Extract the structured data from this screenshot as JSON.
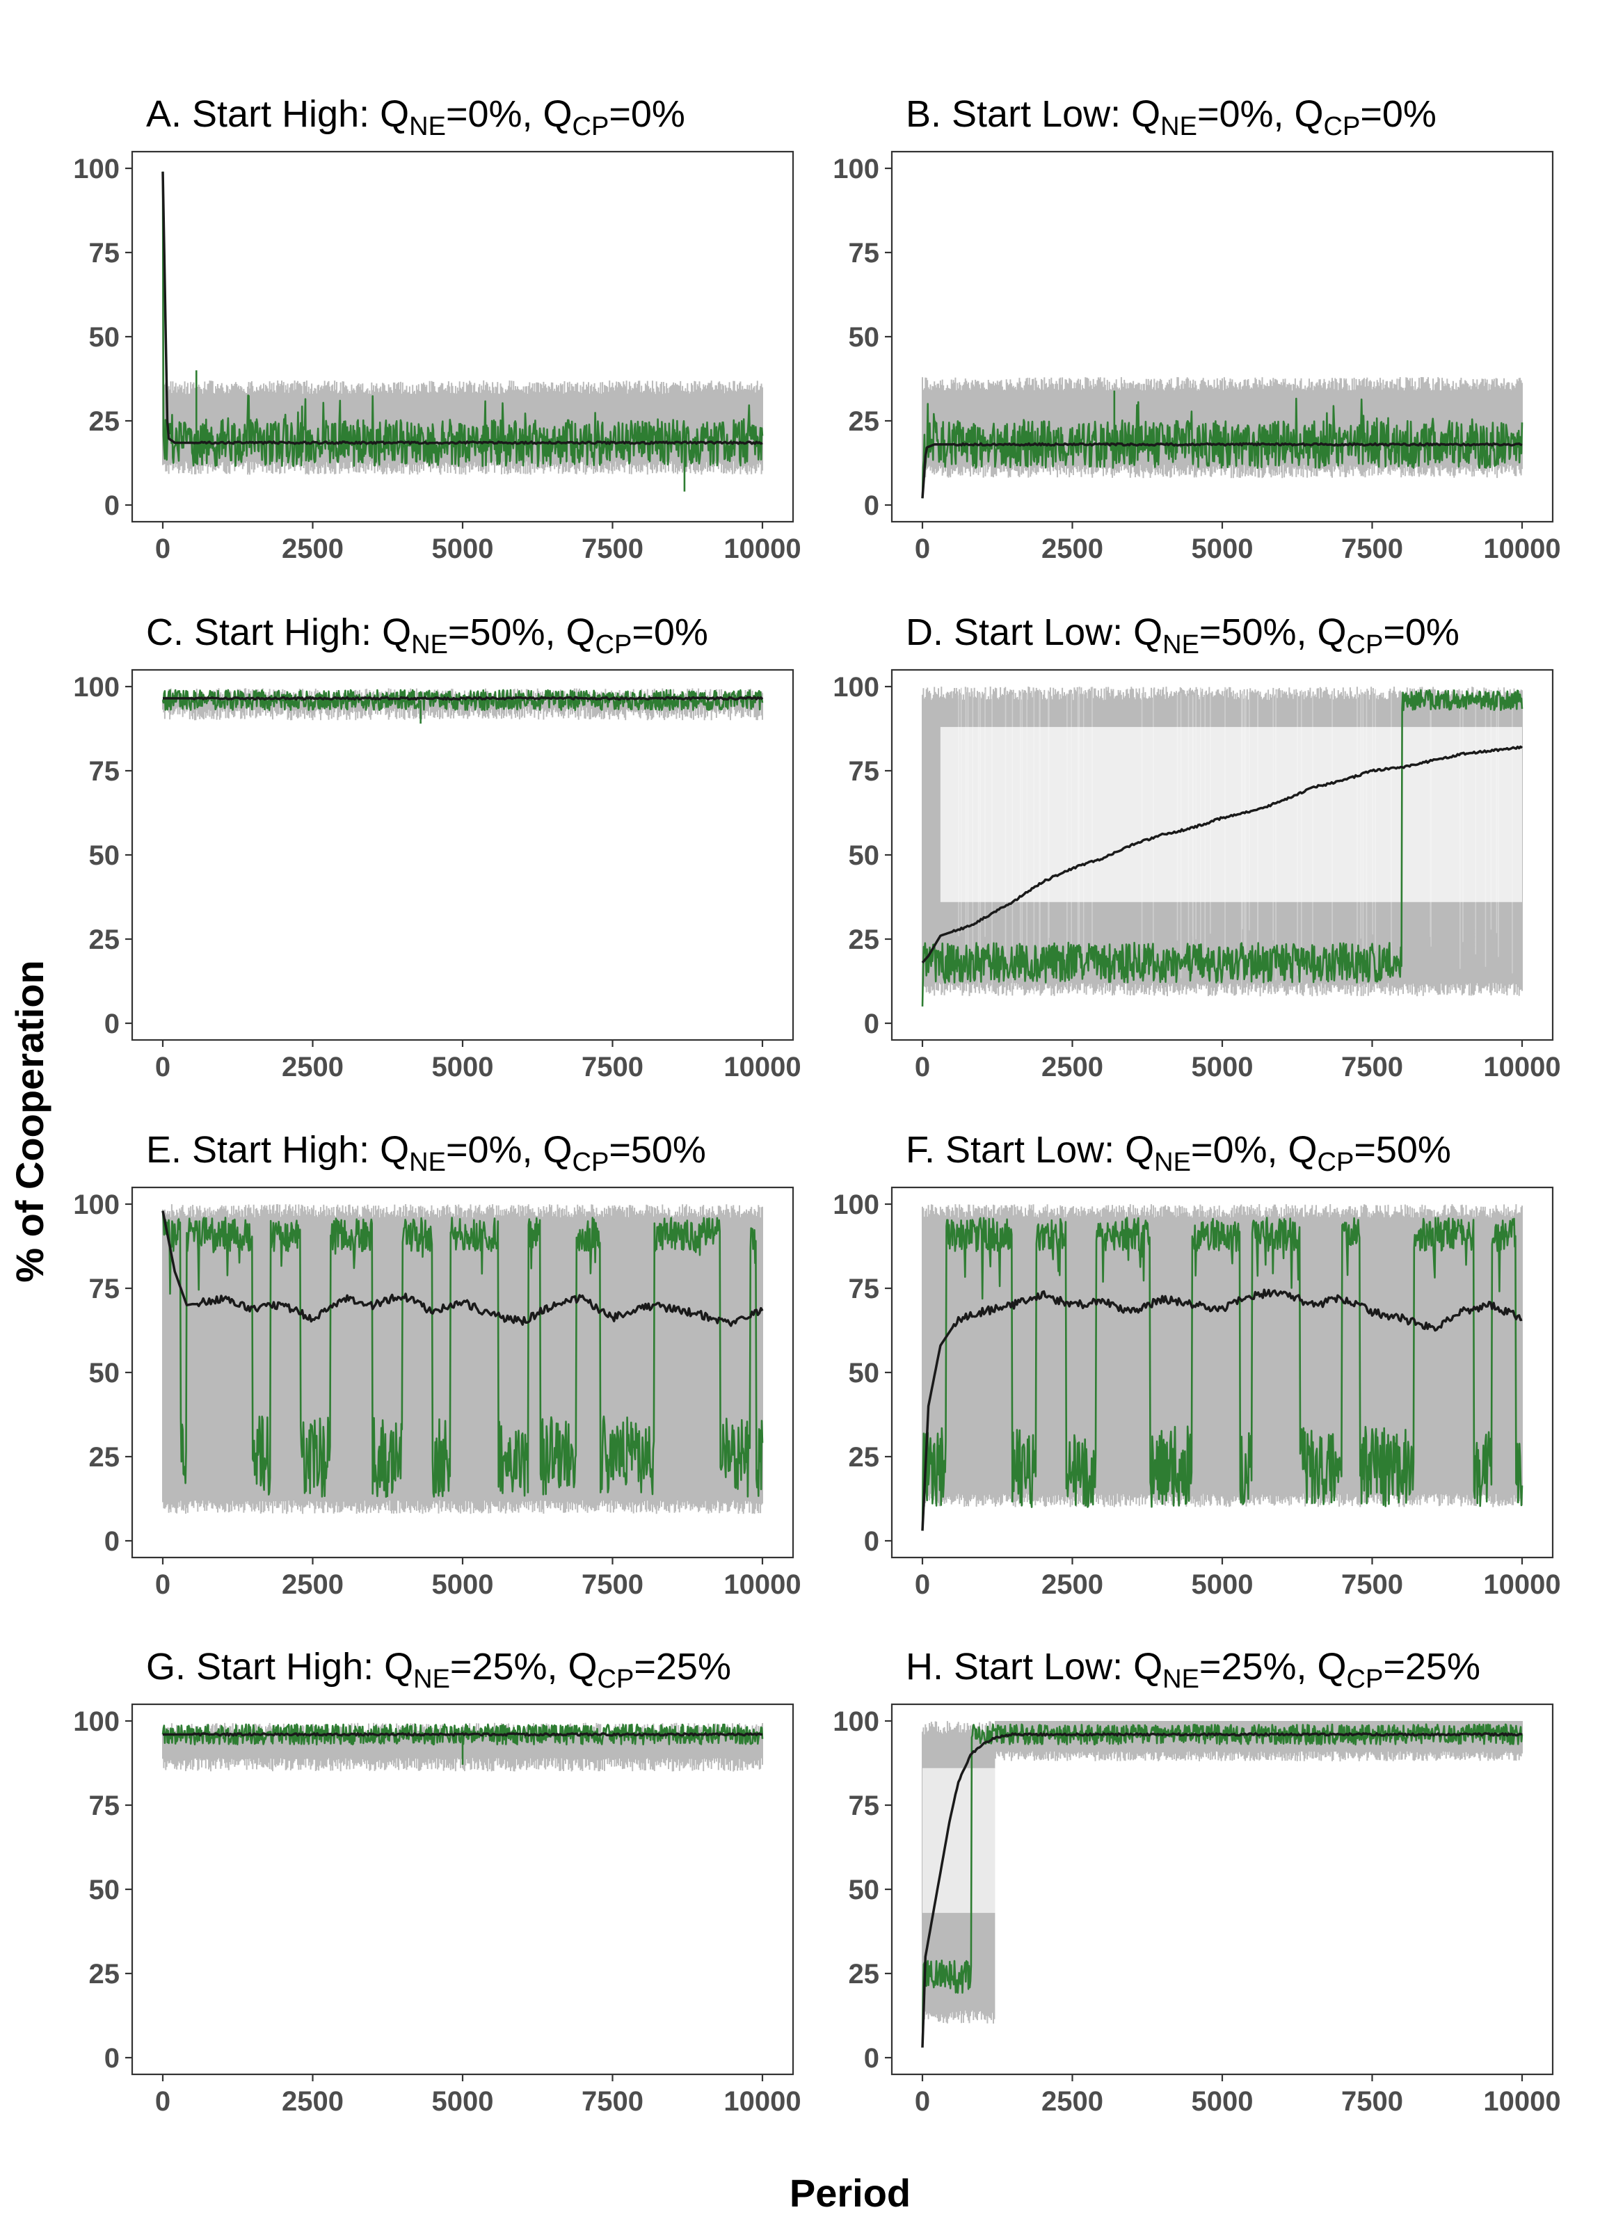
{
  "chart_data": {
    "type": "line",
    "xlabel": "Period",
    "ylabel": "% of Cooperation",
    "xlim": [
      0,
      10000
    ],
    "ylim": [
      0,
      100
    ],
    "xticks": [
      0,
      2500,
      5000,
      7500,
      10000
    ],
    "yticks": [
      0,
      25,
      50,
      75,
      100
    ],
    "grid": false,
    "colors": {
      "simulation_runs": "#b3b3b3",
      "example_run": "#2e7d32",
      "mean": "#1a1a1a"
    },
    "series_description": [
      {
        "style": "many simulation runs",
        "color": "#b3b3b3"
      },
      {
        "style": "one highlighted run",
        "color": "#2e7d32"
      },
      {
        "style": "average across runs",
        "color": "#1a1a1a"
      }
    ],
    "panels": [
      {
        "title": "A. Start High: QNE=0%, QCP=0%",
        "title_parts": [
          "A. Start High: Q",
          "NE",
          "=0%, Q",
          "CP",
          "=0%"
        ],
        "mean_points": [
          [
            0,
            99
          ],
          [
            80,
            20
          ],
          [
            200,
            18.5
          ],
          [
            10000,
            18.5
          ]
        ],
        "green": {
          "kind": "noise",
          "center": 18.5,
          "amp": 7,
          "start": 99,
          "spikes": [
            [
              560,
              40
            ],
            [
              8700,
              4
            ]
          ]
        },
        "grey_band": [
          9,
          37
        ],
        "grey_start": 99
      },
      {
        "title": "B. Start Low: QNE=0%, QCP=0%",
        "title_parts": [
          "B. Start Low: Q",
          "NE",
          "=0%, Q",
          "CP",
          "=0%"
        ],
        "mean_points": [
          [
            0,
            2
          ],
          [
            60,
            17
          ],
          [
            200,
            18
          ],
          [
            10000,
            18
          ]
        ],
        "green": {
          "kind": "noise",
          "center": 18,
          "amp": 7,
          "start": 2,
          "spikes": [
            [
              3200,
              34
            ]
          ]
        },
        "grey_band": [
          8,
          38
        ],
        "grey_start": 2
      },
      {
        "title": "C. Start High: QNE=50%, QCP=0%",
        "title_parts": [
          "C. Start High: Q",
          "NE",
          "=50%, Q",
          "CP",
          "=0%"
        ],
        "mean_points": [
          [
            0,
            96.5
          ],
          [
            10000,
            96.5
          ]
        ],
        "green": {
          "kind": "noise",
          "center": 96,
          "amp": 3,
          "start": 96,
          "spikes": [
            [
              4300,
              89
            ]
          ]
        },
        "grey_band": [
          90,
          99.5
        ],
        "grey_start": 96
      },
      {
        "title": "D. Start Low: QNE=50%, QCP=0%",
        "title_parts": [
          "D. Start Low: Q",
          "NE",
          "=50%, Q",
          "CP",
          "=0%"
        ],
        "mean_points": [
          [
            0,
            18
          ],
          [
            100,
            20
          ],
          [
            300,
            26
          ],
          [
            800,
            29
          ],
          [
            1500,
            36
          ],
          [
            2000,
            42
          ],
          [
            2500,
            46
          ],
          [
            3000,
            49
          ],
          [
            3500,
            53
          ],
          [
            4000,
            56
          ],
          [
            4500,
            58
          ],
          [
            5000,
            61
          ],
          [
            5500,
            63
          ],
          [
            6000,
            66
          ],
          [
            6500,
            70
          ],
          [
            7000,
            72
          ],
          [
            7500,
            75
          ],
          [
            8000,
            76
          ],
          [
            8500,
            78
          ],
          [
            9000,
            80
          ],
          [
            9500,
            81
          ],
          [
            10000,
            82
          ]
        ],
        "green": {
          "kind": "switch",
          "low": 18,
          "high": 96,
          "switch_at": 8000,
          "amp": 6,
          "start": 5
        },
        "grey_band": [
          8,
          100
        ],
        "grey_start": 5,
        "grey_low_band": [
          8,
          32
        ],
        "grey_high_band": [
          90,
          100
        ]
      },
      {
        "title": "E. Start High: QNE=0%, QCP=50%",
        "title_parts": [
          "E. Start High: Q",
          "NE",
          "=0%, Q",
          "CP",
          "=50%"
        ],
        "mean_points": [
          [
            0,
            98
          ],
          [
            200,
            80
          ],
          [
            400,
            70
          ],
          [
            1000,
            72
          ],
          [
            1500,
            69
          ],
          [
            2000,
            70
          ],
          [
            2500,
            66
          ],
          [
            3000,
            72
          ],
          [
            3500,
            70
          ],
          [
            4000,
            73
          ],
          [
            4500,
            68
          ],
          [
            5000,
            71
          ],
          [
            5500,
            67
          ],
          [
            6000,
            65
          ],
          [
            6500,
            70
          ],
          [
            7000,
            72
          ],
          [
            7500,
            66
          ],
          [
            8000,
            70
          ],
          [
            8500,
            69
          ],
          [
            9000,
            67
          ],
          [
            9500,
            64
          ],
          [
            10000,
            69
          ]
        ],
        "green": {
          "kind": "regime",
          "low": 25,
          "high": 96,
          "start": 98,
          "segments": [
            [
              0,
              1
            ],
            [
              300,
              0
            ],
            [
              400,
              1
            ],
            [
              1500,
              0
            ],
            [
              1800,
              1
            ],
            [
              2300,
              0
            ],
            [
              2800,
              1
            ],
            [
              3500,
              0
            ],
            [
              4000,
              1
            ],
            [
              4500,
              0
            ],
            [
              4800,
              1
            ],
            [
              5600,
              0
            ],
            [
              6100,
              1
            ],
            [
              6300,
              0
            ],
            [
              6900,
              1
            ],
            [
              7300,
              0
            ],
            [
              8200,
              1
            ],
            [
              9300,
              0
            ],
            [
              9800,
              1
            ],
            [
              9900,
              0
            ]
          ]
        },
        "grey_band": [
          8,
          100
        ],
        "grey_start": 98
      },
      {
        "title": "F. Start Low: QNE=0%, QCP=50%",
        "title_parts": [
          "F. Start Low: Q",
          "NE",
          "=0%, Q",
          "CP",
          "=50%"
        ],
        "mean_points": [
          [
            0,
            3
          ],
          [
            100,
            40
          ],
          [
            300,
            58
          ],
          [
            600,
            66
          ],
          [
            1000,
            68
          ],
          [
            1500,
            70
          ],
          [
            2000,
            73
          ],
          [
            2500,
            70
          ],
          [
            3000,
            71
          ],
          [
            3500,
            68
          ],
          [
            4000,
            72
          ],
          [
            4500,
            70
          ],
          [
            5000,
            69
          ],
          [
            5500,
            73
          ],
          [
            6000,
            74
          ],
          [
            6500,
            70
          ],
          [
            7000,
            72
          ],
          [
            7500,
            68
          ],
          [
            8000,
            66
          ],
          [
            8500,
            63
          ],
          [
            9000,
            68
          ],
          [
            9500,
            70
          ],
          [
            10000,
            66
          ]
        ],
        "green": {
          "kind": "regime",
          "low": 22,
          "high": 96,
          "start": 3,
          "segments": [
            [
              0,
              0
            ],
            [
              400,
              1
            ],
            [
              1500,
              0
            ],
            [
              1900,
              1
            ],
            [
              2400,
              0
            ],
            [
              2900,
              1
            ],
            [
              3800,
              0
            ],
            [
              4500,
              1
            ],
            [
              5300,
              0
            ],
            [
              5500,
              1
            ],
            [
              6300,
              0
            ],
            [
              7000,
              1
            ],
            [
              7300,
              0
            ],
            [
              8200,
              1
            ],
            [
              9200,
              0
            ],
            [
              9500,
              1
            ],
            [
              9900,
              0
            ]
          ]
        },
        "grey_band": [
          10,
          100
        ],
        "grey_start": 3
      },
      {
        "title": "G. Start High: QNE=25%, QCP=25%",
        "title_parts": [
          "G. Start High: Q",
          "NE",
          "=25%, Q",
          "CP",
          "=25%"
        ],
        "mean_points": [
          [
            0,
            96
          ],
          [
            10000,
            96
          ]
        ],
        "green": {
          "kind": "noise",
          "center": 96,
          "amp": 3,
          "start": 96,
          "spikes": [
            [
              5000,
              87
            ]
          ]
        },
        "grey_band": [
          85,
          99.5
        ],
        "grey_start": 96
      },
      {
        "title": "H. Start Low: QNE=25%, QCP=25%",
        "title_parts": [
          "H. Start Low: Q",
          "NE",
          "=25%, Q",
          "CP",
          "=25%"
        ],
        "mean_points": [
          [
            0,
            3
          ],
          [
            50,
            30
          ],
          [
            150,
            40
          ],
          [
            300,
            55
          ],
          [
            450,
            70
          ],
          [
            600,
            82
          ],
          [
            800,
            90
          ],
          [
            1000,
            93
          ],
          [
            1200,
            95
          ],
          [
            1500,
            96
          ],
          [
            10000,
            96
          ]
        ],
        "green": {
          "kind": "switch",
          "low": 24,
          "high": 96,
          "switch_at": 820,
          "amp": 5,
          "start": 3
        },
        "grey_band": [
          10,
          100
        ],
        "grey_start": 3,
        "grey_low_band": [
          12,
          40
        ],
        "grey_high_band": [
          88,
          100
        ],
        "grey_transition_end": 1200
      }
    ]
  }
}
